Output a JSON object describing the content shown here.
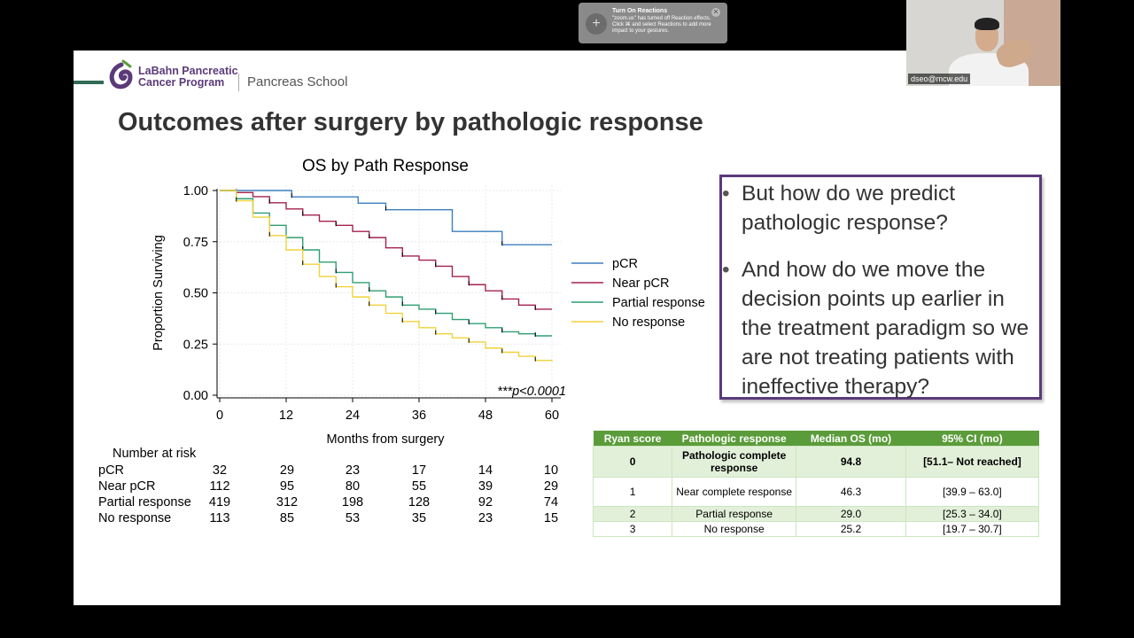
{
  "slide": {
    "logo_line1": "LaBahn Pancreatic",
    "logo_line2": "Cancer Program",
    "school": "Pancreas School",
    "title": "Outcomes after surgery by pathologic response"
  },
  "chart_data": {
    "type": "line",
    "title": "OS by Path Response",
    "xlabel": "Months from surgery",
    "ylabel": "Proportion Surviving",
    "xlim": [
      0,
      60
    ],
    "ylim": [
      0,
      1
    ],
    "xticks": [
      "0",
      "12",
      "24",
      "36",
      "48",
      "60"
    ],
    "yticks": [
      "0.00",
      "0.25",
      "0.50",
      "0.75",
      "1.00"
    ],
    "annotation": "***p<0.0001",
    "legend_position": "right",
    "grid": true,
    "series": [
      {
        "name": "pCR",
        "color": "#3b7fbf",
        "x": [
          0,
          13,
          25,
          30,
          42,
          51,
          60
        ],
        "y": [
          1.0,
          0.969,
          0.938,
          0.906,
          0.8,
          0.735,
          0.735
        ]
      },
      {
        "name": "Near pCR",
        "color": "#a3214f",
        "x": [
          0,
          3,
          6,
          9,
          12,
          15,
          18,
          21,
          24,
          27,
          30,
          33,
          36,
          39,
          42,
          45,
          48,
          51,
          54,
          57,
          60
        ],
        "y": [
          1.0,
          0.99,
          0.97,
          0.94,
          0.91,
          0.88,
          0.85,
          0.83,
          0.8,
          0.77,
          0.72,
          0.68,
          0.66,
          0.63,
          0.58,
          0.54,
          0.51,
          0.47,
          0.44,
          0.42,
          0.42
        ]
      },
      {
        "name": "Partial response",
        "color": "#2f9e72",
        "x": [
          0,
          3,
          6,
          9,
          12,
          15,
          18,
          21,
          24,
          27,
          30,
          33,
          36,
          39,
          42,
          45,
          48,
          51,
          54,
          57,
          60
        ],
        "y": [
          1.0,
          0.96,
          0.89,
          0.83,
          0.77,
          0.71,
          0.65,
          0.6,
          0.55,
          0.51,
          0.48,
          0.44,
          0.42,
          0.4,
          0.37,
          0.35,
          0.33,
          0.31,
          0.3,
          0.29,
          0.29
        ]
      },
      {
        "name": "No response",
        "color": "#f0d23a",
        "x": [
          0,
          3,
          6,
          9,
          12,
          15,
          18,
          21,
          24,
          27,
          30,
          33,
          36,
          39,
          42,
          45,
          48,
          51,
          54,
          57,
          60
        ],
        "y": [
          1.0,
          0.95,
          0.87,
          0.78,
          0.71,
          0.64,
          0.58,
          0.53,
          0.48,
          0.44,
          0.4,
          0.36,
          0.33,
          0.3,
          0.28,
          0.26,
          0.23,
          0.21,
          0.19,
          0.17,
          0.165
        ]
      }
    ]
  },
  "risk_table": {
    "title": "Number at risk",
    "rows": [
      {
        "label": "pCR",
        "values": [
          "32",
          "29",
          "23",
          "17",
          "14",
          "10"
        ]
      },
      {
        "label": "Near pCR",
        "values": [
          "112",
          "95",
          "80",
          "55",
          "39",
          "29"
        ]
      },
      {
        "label": "Partial response",
        "values": [
          "419",
          "312",
          "198",
          "128",
          "92",
          "74"
        ]
      },
      {
        "label": "No response",
        "values": [
          "113",
          "85",
          "53",
          "35",
          "23",
          "15"
        ]
      }
    ]
  },
  "callout": {
    "bullets": [
      "But how do we predict pathologic response?",
      "And how do we move the decision points up earlier in the treatment paradigm so we are not treating patients with ineffective therapy?"
    ]
  },
  "ryan_table": {
    "headers": [
      "Ryan score",
      "Pathologic response",
      "Median OS (mo)",
      "95% CI (mo)"
    ],
    "rows": [
      {
        "score": "0",
        "response": "Pathologic complete response",
        "median": "94.8",
        "ci": "[51.1– Not reached]"
      },
      {
        "score": "1",
        "response": "Near complete response",
        "median": "46.3",
        "ci": "[39.9 – 63.0]"
      },
      {
        "score": "2",
        "response": "Partial response",
        "median": "29.0",
        "ci": "[25.3 – 34.0]"
      },
      {
        "score": "3",
        "response": "No response",
        "median": "25.2",
        "ci": "[19.7 – 30.7]"
      }
    ]
  },
  "zoom_notification": {
    "title": "Turn On Reactions",
    "body": "\"zoom.us\" has turned off Reaction effects. Click ⌘ and select Reactions to add more impact to your gestures."
  },
  "camera": {
    "name": "dseo@mcw.edu"
  }
}
